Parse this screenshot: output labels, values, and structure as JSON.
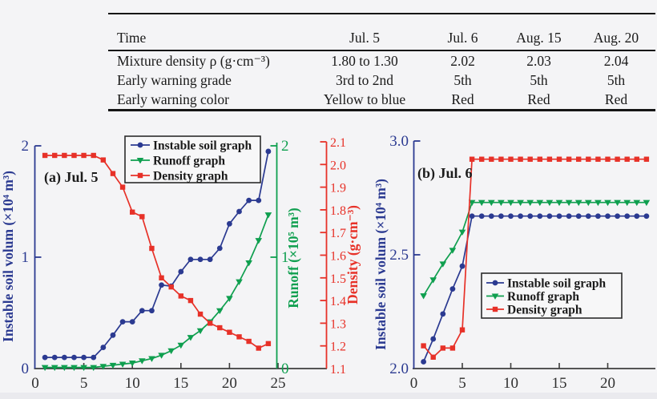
{
  "table": {
    "columns": [
      "Time",
      "Jul. 5",
      "Jul. 6",
      "Aug. 15",
      "Aug. 20"
    ],
    "rows": [
      {
        "label": "Mixture density ρ (g·cm⁻³)",
        "values": [
          "1.80 to 1.30",
          "2.02",
          "2.03",
          "2.04"
        ]
      },
      {
        "label": "Early warning grade",
        "values": [
          "3rd to 2nd",
          "5th",
          "5th",
          "5th"
        ]
      },
      {
        "label": "Early warning color",
        "values": [
          "Yellow to blue",
          "Red",
          "Red",
          "Red"
        ]
      }
    ]
  },
  "colors": {
    "soil": "#2b3a91",
    "runoff": "#0f9f4f",
    "density": "#e73128",
    "axis": "#3d3d3d",
    "text": "#1a1a1a",
    "legend_border": "#2b2b2b",
    "legend_bg": "#f7f7f8"
  },
  "chart_data": [
    {
      "type": "line",
      "panel_label": "(a) Jul. 5",
      "x": [
        1,
        2,
        3,
        4,
        5,
        6,
        7,
        8,
        9,
        10,
        11,
        12,
        13,
        14,
        15,
        16,
        17,
        18,
        19,
        20,
        21,
        22,
        23,
        24
      ],
      "x_axis": {
        "ticks": [
          "0",
          "5",
          "10",
          "15",
          "20",
          "25"
        ],
        "values": [
          0,
          5,
          10,
          15,
          20,
          25
        ]
      },
      "y_axis_soil": {
        "label": "Instable soil volum (×10⁴ m³)",
        "ticks": [
          "0",
          "1",
          "2"
        ],
        "values": [
          0,
          1,
          2
        ],
        "range": [
          0,
          2
        ]
      },
      "y_axis_runoff": {
        "label": "Runoff (×10⁵ m³)",
        "ticks": [
          "0",
          "1",
          "2"
        ],
        "values": [
          0,
          1,
          2
        ],
        "range": [
          0,
          2
        ]
      },
      "y_axis_density": {
        "label": "Density (g·cm⁻³)",
        "ticks": [
          "1.1",
          "1.2",
          "1.3",
          "1.4",
          "1.5",
          "1.6",
          "1.7",
          "1.8",
          "1.9",
          "2.0",
          "2.1"
        ],
        "values": [
          1.1,
          1.2,
          1.3,
          1.4,
          1.5,
          1.6,
          1.7,
          1.8,
          1.9,
          2.0,
          2.1
        ],
        "range": [
          1.1,
          2.1
        ]
      },
      "legend": [
        "Instable soil graph",
        "Runoff graph",
        "Density graph"
      ],
      "series": [
        {
          "name": "Instable soil graph",
          "axis": "soil",
          "marker": "circle",
          "values": [
            0.1,
            0.1,
            0.1,
            0.1,
            0.1,
            0.1,
            0.19,
            0.3,
            0.42,
            0.42,
            0.52,
            0.52,
            0.75,
            0.74,
            0.87,
            0.98,
            0.98,
            0.98,
            1.08,
            1.3,
            1.41,
            1.51,
            1.51,
            1.95
          ]
        },
        {
          "name": "Runoff graph",
          "axis": "runoff",
          "marker": "triangle",
          "values": [
            0.01,
            0.01,
            0.01,
            0.01,
            0.01,
            0.01,
            0.02,
            0.03,
            0.04,
            0.05,
            0.07,
            0.09,
            0.12,
            0.16,
            0.21,
            0.28,
            0.34,
            0.42,
            0.52,
            0.63,
            0.78,
            0.95,
            1.15,
            1.38
          ]
        },
        {
          "name": "Density graph",
          "axis": "density",
          "marker": "square",
          "values": [
            2.04,
            2.04,
            2.04,
            2.04,
            2.04,
            2.04,
            2.02,
            1.96,
            1.9,
            1.79,
            1.77,
            1.63,
            1.5,
            1.46,
            1.42,
            1.4,
            1.34,
            1.3,
            1.28,
            1.26,
            1.24,
            1.22,
            1.19,
            1.21
          ]
        }
      ]
    },
    {
      "type": "line",
      "panel_label": "(b) Jul. 6",
      "x": [
        1,
        2,
        3,
        4,
        5,
        6,
        7,
        8,
        9,
        10,
        11,
        12,
        13,
        14,
        15,
        16,
        17,
        18,
        19,
        20,
        21,
        22,
        23,
        24
      ],
      "x_axis": {
        "ticks": [
          "0",
          "5",
          "10",
          "15",
          "20"
        ],
        "values": [
          0,
          5,
          10,
          15,
          20
        ]
      },
      "y_axis_soil": {
        "label": "Instable soil volum (×10⁴ m³)",
        "ticks": [
          "2.0",
          "2.5",
          "3.0"
        ],
        "values": [
          2.0,
          2.5,
          3.0
        ],
        "range": [
          2.0,
          3.0
        ]
      },
      "legend": [
        "Instable soil graph",
        "Runoff graph",
        "Density graph"
      ],
      "series": [
        {
          "name": "Instable soil graph",
          "axis": "soil",
          "marker": "circle",
          "values": [
            2.03,
            2.13,
            2.24,
            2.35,
            2.45,
            2.67,
            2.67,
            2.67,
            2.67,
            2.67,
            2.67,
            2.67,
            2.67,
            2.67,
            2.67,
            2.67,
            2.67,
            2.67,
            2.67,
            2.67,
            2.67,
            2.67,
            2.67,
            2.67
          ]
        },
        {
          "name": "Runoff graph",
          "axis": "soil",
          "marker": "triangle",
          "values": [
            2.32,
            2.39,
            2.46,
            2.52,
            2.6,
            2.73,
            2.73,
            2.73,
            2.73,
            2.73,
            2.73,
            2.73,
            2.73,
            2.73,
            2.73,
            2.73,
            2.73,
            2.73,
            2.73,
            2.73,
            2.73,
            2.73,
            2.73,
            2.73
          ]
        },
        {
          "name": "Density graph",
          "axis": "soil",
          "marker": "square",
          "values": [
            2.1,
            2.05,
            2.09,
            2.09,
            2.17,
            2.92,
            2.92,
            2.92,
            2.92,
            2.92,
            2.92,
            2.92,
            2.92,
            2.92,
            2.92,
            2.92,
            2.92,
            2.92,
            2.92,
            2.92,
            2.92,
            2.92,
            2.92,
            2.92
          ]
        }
      ]
    }
  ]
}
